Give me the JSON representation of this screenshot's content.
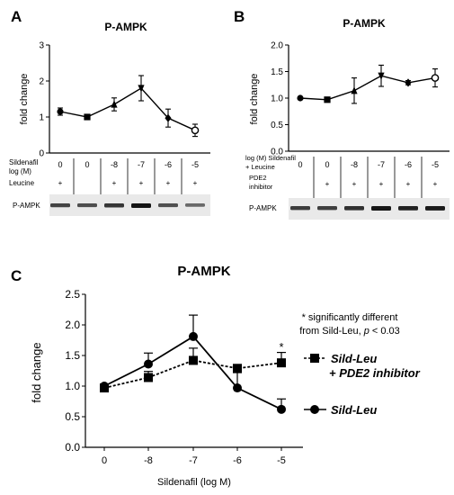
{
  "panels": {
    "A": {
      "letter": "A",
      "title": "P-AMPK",
      "ylabel": "fold change",
      "yticks": [
        "3",
        "2",
        "1",
        "0"
      ],
      "row1_label": [
        "Sildenafil",
        "log (M)"
      ],
      "row1_values": [
        "0",
        "0",
        "-8",
        "-7",
        "-6",
        "-5"
      ],
      "row2_label": [
        "Leucine"
      ],
      "row2_values": [
        "+",
        "",
        "+",
        "+",
        "+",
        "+"
      ],
      "blot_label": "P-AMPK"
    },
    "B": {
      "letter": "B",
      "title": "P-AMPK",
      "ylabel": "fold change",
      "yticks": [
        "2.0",
        "1.5",
        "1.0",
        "0.5",
        "0.0"
      ],
      "row1_label": [
        "log (M) Sildenafil",
        "+ Leucine"
      ],
      "row1_values": [
        "0",
        "0",
        "-8",
        "-7",
        "-6",
        "-5"
      ],
      "row2_label": [
        "PDE2",
        "inhibitor"
      ],
      "row2_values": [
        "",
        "+",
        "+",
        "+",
        "+",
        "+"
      ],
      "blot_label": "P-AMPK"
    },
    "C": {
      "letter": "C",
      "title": "P-AMPK",
      "ylabel": "fold change",
      "xlabel": "Sildenafil (log M)",
      "yticks": [
        "2.5",
        "2.0",
        "1.5",
        "1.0",
        "0.5",
        "0.0"
      ],
      "xticks": [
        "0",
        "-8",
        "-7",
        "-6",
        "-5"
      ],
      "note_lines": [
        "* significantly different",
        "from Sild-Leu, "
      ],
      "note_p": "p",
      "note_tail": " < 0.03",
      "asterisk": "*",
      "legend": {
        "pde2_line1": "Sild-Leu",
        "pde2_line2": "+ PDE2 inhibitor",
        "sild": "Sild-Leu"
      }
    }
  },
  "chart_data": [
    {
      "panel": "A",
      "type": "line",
      "title": "P-AMPK",
      "ylabel": "fold change",
      "ylim": [
        0,
        3
      ],
      "x_categories": [
        "0",
        "0",
        "-8",
        "-7",
        "-6",
        "-5"
      ],
      "series": [
        {
          "values": [
            1.15,
            1.0,
            1.35,
            1.8,
            0.97,
            0.63
          ],
          "errors": [
            0.1,
            0.03,
            0.18,
            0.35,
            0.25,
            0.17
          ],
          "markers": [
            "circle",
            "square",
            "triangle-up",
            "triangle-down",
            "diamond",
            "circle-open"
          ]
        }
      ]
    },
    {
      "panel": "B",
      "type": "line",
      "title": "P-AMPK",
      "ylabel": "fold change",
      "ylim": [
        0,
        2
      ],
      "x_categories": [
        "0",
        "0",
        "-8",
        "-7",
        "-6",
        "-5"
      ],
      "series": [
        {
          "values": [
            1.0,
            0.97,
            1.14,
            1.42,
            1.29,
            1.38
          ],
          "errors": [
            0.02,
            0.03,
            0.24,
            0.2,
            0.04,
            0.17
          ],
          "markers": [
            "circle",
            "square",
            "triangle-up",
            "triangle-down",
            "diamond",
            "circle-open"
          ]
        }
      ]
    },
    {
      "panel": "C",
      "type": "line",
      "title": "P-AMPK",
      "xlabel": "Sildenafil (log M)",
      "ylabel": "fold change",
      "ylim": [
        0,
        2.5
      ],
      "categories": [
        "0",
        "-8",
        "-7",
        "-6",
        "-5"
      ],
      "legend_position": "right",
      "series": [
        {
          "name": "Sild-Leu + PDE2 inhibitor",
          "values": [
            0.97,
            1.14,
            1.42,
            1.29,
            1.38
          ],
          "errors": [
            0.02,
            0.1,
            0.2,
            0.04,
            0.17
          ],
          "style": "dashed",
          "marker": "square"
        },
        {
          "name": "Sild-Leu",
          "values": [
            1.0,
            1.36,
            1.81,
            0.97,
            0.62
          ],
          "errors": [
            0.02,
            0.18,
            0.35,
            0.25,
            0.17
          ],
          "style": "solid",
          "marker": "circle"
        }
      ],
      "annotation": "* significantly different from Sild-Leu, p < 0.03"
    }
  ]
}
